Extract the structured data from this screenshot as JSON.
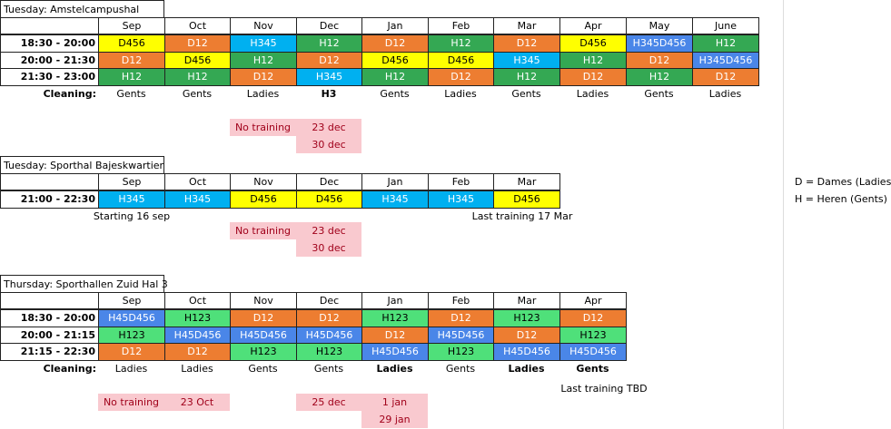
{
  "colors": {
    "D456": "#ffff00",
    "D12": "#ed7d31",
    "H12": "#34a853",
    "H345": "#00b0f0",
    "H345D456": "#4a86e8",
    "H45D456": "#4a86e8",
    "H123": "#4fe07a",
    "H3": "#00b0f0",
    "pink": "#f9c9cf"
  },
  "tables": [
    {
      "title": "Tuesday: Amstelcampushal",
      "months": [
        "Sep",
        "Oct",
        "Nov",
        "Dec",
        "Jan",
        "Feb",
        "Mar",
        "Apr",
        "May",
        "June"
      ],
      "rows": [
        {
          "time": "18:30 - 20:00",
          "cells": [
            "D456",
            "D12",
            "H345",
            "H12",
            "D12",
            "H12",
            "D12",
            "D456",
            "H345D456",
            "H12"
          ]
        },
        {
          "time": "20:00 - 21:30",
          "cells": [
            "D12",
            "D456",
            "H12",
            "D12",
            "D456",
            "D456",
            "H345",
            "H12",
            "D12",
            "H345D456"
          ]
        },
        {
          "time": "21:30 - 23:00",
          "cells": [
            "H12",
            "H12",
            "D12",
            "H345",
            "H12",
            "D12",
            "H12",
            "D12",
            "H12",
            "D12"
          ]
        }
      ],
      "cleaning_label": "Cleaning:",
      "cleaning": [
        "Gents",
        "Gents",
        "Ladies",
        "H3",
        "Gents",
        "Ladies",
        "Gents",
        "Ladies",
        "Gents",
        "Ladies"
      ],
      "cleaning_bold": [
        false,
        false,
        false,
        true,
        false,
        false,
        false,
        false,
        false,
        false
      ]
    },
    {
      "title": "Tuesday: Sporthal Bajeskwartier",
      "months": [
        "Sep",
        "Oct",
        "Nov",
        "Dec",
        "Jan",
        "Feb",
        "Mar"
      ],
      "rows": [
        {
          "time": "21:00 - 22:30",
          "cells": [
            "H345",
            "H345",
            "D456",
            "D456",
            "H345",
            "H345",
            "D456"
          ]
        }
      ],
      "start_note": "Starting 16 sep",
      "end_note": "Last training 17 Mar"
    },
    {
      "title": "Thursday: Sporthallen Zuid Hal 3",
      "months": [
        "Sep",
        "Oct",
        "Nov",
        "Dec",
        "Jan",
        "Feb",
        "Mar",
        "Apr"
      ],
      "rows": [
        {
          "time": "18:30 - 20:00",
          "cells": [
            "H45D456",
            "H123",
            "D12",
            "D12",
            "H123",
            "D12",
            "H123",
            "D12"
          ]
        },
        {
          "time": "20:00 - 21:15",
          "cells": [
            "H123",
            "H45D456",
            "H45D456",
            "H45D456",
            "D12",
            "H45D456",
            "D12",
            "H123"
          ]
        },
        {
          "time": "21:15 - 22:30",
          "cells": [
            "D12",
            "D12",
            "H123",
            "H123",
            "H45D456",
            "H123",
            "H45D456",
            "H45D456"
          ]
        }
      ],
      "cleaning_label": "Cleaning:",
      "cleaning": [
        "Ladies",
        "Ladies",
        "Gents",
        "Gents",
        "Ladies",
        "Gents",
        "Ladies",
        "Gents"
      ],
      "cleaning_bold": [
        false,
        false,
        false,
        false,
        true,
        false,
        true,
        true
      ],
      "end_note": "Last training TBD"
    }
  ],
  "no_training": [
    {
      "label": "No training",
      "dates": [
        "23 dec",
        "30 dec"
      ]
    },
    {
      "label": "No training",
      "dates": [
        "23 dec",
        "30 dec"
      ]
    },
    {
      "label": "No training",
      "dates": [
        "23 Oct"
      ],
      "extra": [
        "25 dec"
      ],
      "extra2": [
        "1 jan",
        "29 jan"
      ]
    }
  ],
  "legend": [
    "D = Dames (Ladies)",
    "H = Heren (Gents)"
  ]
}
